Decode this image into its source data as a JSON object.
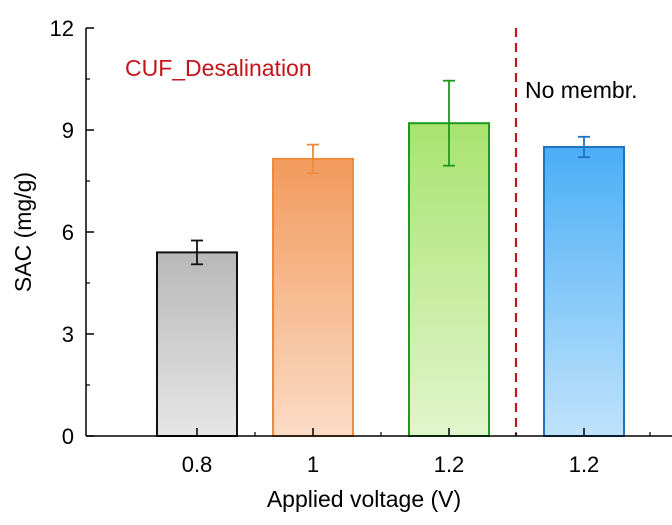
{
  "chart_data": {
    "type": "bar",
    "categories": [
      "0.8",
      "1",
      "1.2",
      "1.2"
    ],
    "values": [
      5.4,
      8.15,
      9.2,
      8.5
    ],
    "errors": [
      0.35,
      0.42,
      1.25,
      0.3
    ],
    "colors": [
      "#b8b8b8",
      "#f29a5c",
      "#a9e36f",
      "#4aaef5"
    ],
    "edge_colors": [
      "#111111",
      "#ee8a3e",
      "#1e9a1e",
      "#1d73c2"
    ],
    "title": "",
    "xlabel": "Applied voltage (V)",
    "ylabel": "SAC (mg/g)",
    "ylim": [
      0,
      12
    ],
    "yticks": [
      "0",
      "3",
      "6",
      "9",
      "12"
    ],
    "grid": false,
    "annotations": {
      "label_left": "CUF_Desalination",
      "label_right": "No membr.",
      "divider_color": "#c0161b"
    }
  }
}
